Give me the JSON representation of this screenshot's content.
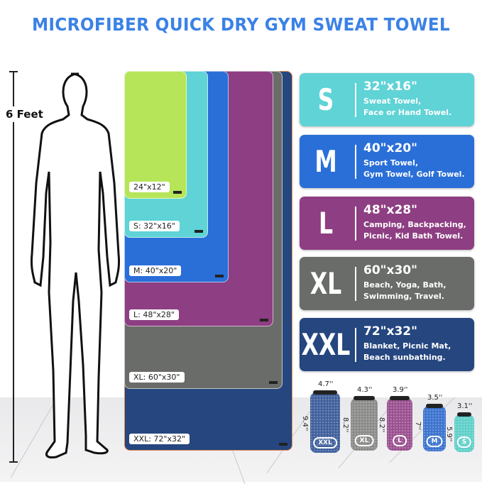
{
  "title": "MICROFIBER QUICK DRY GYM SWEAT TOWEL",
  "height_label": "6 Feet",
  "towels": [
    {
      "label": "XXL: 72\"x32\"",
      "color": "#25467f"
    },
    {
      "label": "XL: 60\"x30\"",
      "color": "#6a6c69"
    },
    {
      "label": "L: 48\"x28\"",
      "color": "#8e3e82"
    },
    {
      "label": "M: 40\"x20\"",
      "color": "#2a6fd8"
    },
    {
      "label": "S: 32\"x16\"",
      "color": "#5fd3d6"
    },
    {
      "label": "24\"x12\"",
      "color": "#b6e55a"
    }
  ],
  "cards": [
    {
      "size": "S",
      "dims": "32\"x16\"",
      "use1": "Sweat Towel,",
      "use2": "Face or Hand Towel.",
      "color": "#5fd3d6"
    },
    {
      "size": "M",
      "dims": "40\"x20\"",
      "use1": "Sport Towel,",
      "use2": "Gym Towel, Golf Towel.",
      "color": "#2a6fd8"
    },
    {
      "size": "L",
      "dims": "48\"x28\"",
      "use1": "Camping, Backpacking,",
      "use2": "Picnic, Kid Bath Towel.",
      "color": "#8e3e82"
    },
    {
      "size": "XL",
      "dims": "60\"x30\"",
      "use1": "Beach, Yoga, Bath,",
      "use2": "Swimming, Travel.",
      "color": "#6a6c69"
    },
    {
      "size": "XXL",
      "dims": "72\"x32\"",
      "use1": "Blanket, Picnic Mat,",
      "use2": "Beach sunbathing.",
      "color": "#25467f"
    }
  ],
  "rolls": [
    {
      "badge": "XXL",
      "width": "4.7''",
      "height": "9.4''",
      "color": "#3f5f9c"
    },
    {
      "badge": "XL",
      "width": "4.3''",
      "height": "8.2''",
      "color": "#8a8b88"
    },
    {
      "badge": "L",
      "width": "3.9''",
      "height": "8.2''",
      "color": "#9a4f8f"
    },
    {
      "badge": "M",
      "width": "3.5''",
      "height": "7''",
      "color": "#3a72cf"
    },
    {
      "badge": "S",
      "width": "3.1''",
      "height": "5.9''",
      "color": "#5fcfc8"
    }
  ]
}
